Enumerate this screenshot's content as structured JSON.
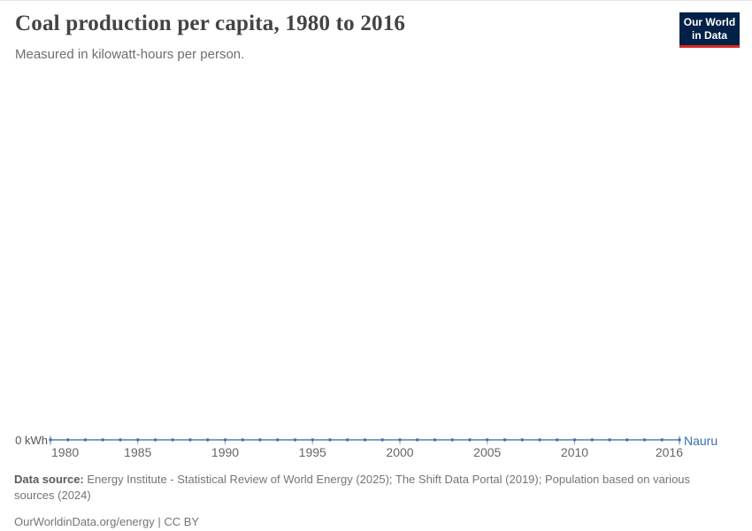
{
  "header": {
    "title": "Coal production per capita, 1980 to 2016",
    "subtitle": "Measured in kilowatt-hours per person.",
    "logo": {
      "line1": "Our World",
      "line2": "in Data"
    }
  },
  "chart_data": {
    "type": "line",
    "title": "Coal production per capita, 1980 to 2016",
    "unit": "kilowatt-hours per person",
    "x": [
      1980,
      1981,
      1982,
      1983,
      1984,
      1985,
      1986,
      1987,
      1988,
      1989,
      1990,
      1991,
      1992,
      1993,
      1994,
      1995,
      1996,
      1997,
      1998,
      1999,
      2000,
      2001,
      2002,
      2003,
      2004,
      2005,
      2006,
      2007,
      2008,
      2009,
      2010,
      2011,
      2012,
      2013,
      2014,
      2015,
      2016
    ],
    "series": [
      {
        "name": "Nauru",
        "values": [
          0,
          0,
          0,
          0,
          0,
          0,
          0,
          0,
          0,
          0,
          0,
          0,
          0,
          0,
          0,
          0,
          0,
          0,
          0,
          0,
          0,
          0,
          0,
          0,
          0,
          0,
          0,
          0,
          0,
          0,
          0,
          0,
          0,
          0,
          0,
          0,
          0
        ]
      }
    ],
    "x_range": [
      1980,
      2016
    ],
    "x_tick_labels": [
      "1980",
      "1985",
      "1990",
      "1995",
      "2000",
      "2005",
      "2010",
      "2016"
    ],
    "y_zero_label": "0 kWh",
    "y_axis_labels": [
      "0 kWh"
    ],
    "grid": false,
    "legend_position": "end-of-line"
  },
  "footer": {
    "data_source_label": "Data source:",
    "data_source_text": "Energy Institute - Statistical Review of World Energy (2025); The Shift Data Portal (2019); Population based on various sources (2024)",
    "attribution": "OurWorldinData.org/energy | CC BY"
  },
  "colors": {
    "line": "#577eb4",
    "point": "#4a6fae",
    "entity_label": "#3d6bb3",
    "tick": "#a5a5a5",
    "logo_bg": "#002147",
    "logo_accent": "#d42b21"
  }
}
